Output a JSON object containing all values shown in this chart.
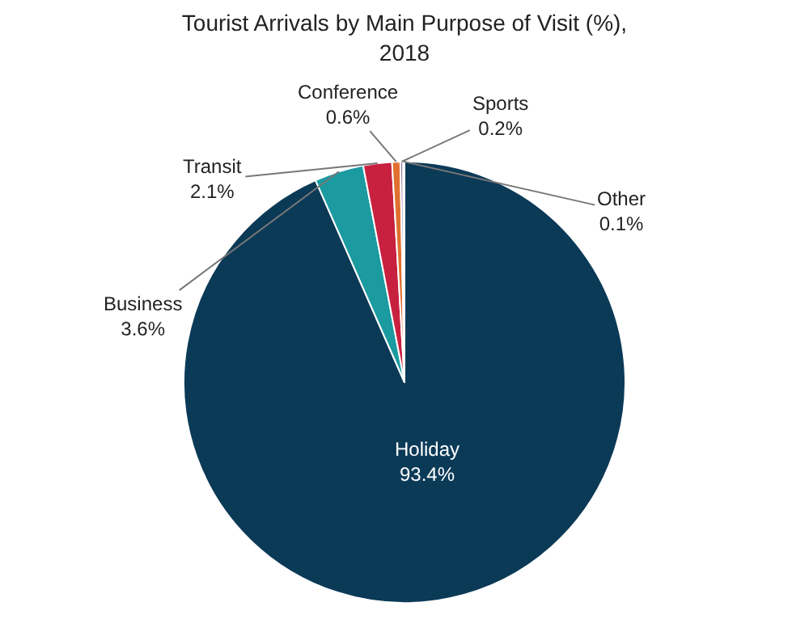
{
  "chart_data": {
    "type": "pie",
    "title": "Tourist Arrivals by Main Purpose of Visit (%),\n2018",
    "categories": [
      "Holiday",
      "Business",
      "Transit",
      "Conference",
      "Sports",
      "Other"
    ],
    "values": [
      93.4,
      3.6,
      2.1,
      0.6,
      0.2,
      0.1
    ],
    "colors": [
      "#0b3a57",
      "#1b9aa0",
      "#c8203f",
      "#e07030",
      "#8a6a9a",
      "#6aa0c8"
    ],
    "value_labels": [
      "93.4%",
      "3.6%",
      "2.1%",
      "0.6%",
      "0.2%",
      "0.1%"
    ],
    "legend": false
  }
}
